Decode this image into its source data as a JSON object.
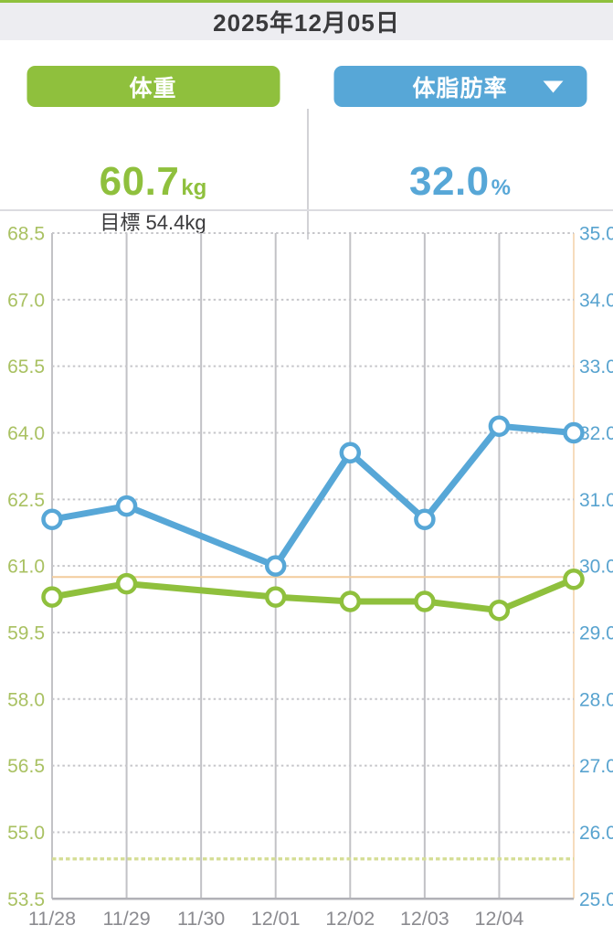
{
  "header": {
    "date": "2025年12月05日"
  },
  "metrics": {
    "weight": {
      "label": "体重",
      "value": "60.7",
      "unit": "kg",
      "target": "目標 54.4kg",
      "color": "#8fc03d"
    },
    "body_fat": {
      "label": "体脂肪率",
      "value": "32.0",
      "unit": "%",
      "color": "#57a7d7",
      "dropdown_icon": "chevron-down-triangle"
    }
  },
  "chart_data": {
    "type": "line",
    "x_dates": [
      "11/28",
      "11/29",
      "11/30",
      "12/01",
      "12/02",
      "12/03",
      "12/04",
      "12/05"
    ],
    "x_tick_labels": [
      "11/28",
      "11/29",
      "11/30",
      "12/01",
      "12/02",
      "12/03",
      "12/04"
    ],
    "left_axis": {
      "min": 53.5,
      "max": 68.5,
      "step": 1.5,
      "ticks": [
        "68.5",
        "67.0",
        "65.5",
        "64.0",
        "62.5",
        "61.0",
        "59.5",
        "58.0",
        "56.5",
        "55.0",
        "53.5"
      ],
      "color": "#a9c162"
    },
    "right_axis": {
      "min": 25.0,
      "max": 35.0,
      "step": 1.0,
      "ticks": [
        "35.0",
        "34.0",
        "33.0",
        "32.0",
        "31.0",
        "30.0",
        "29.0",
        "28.0",
        "27.0",
        "26.0",
        "25.0"
      ],
      "color": "#58a3cf"
    },
    "series": [
      {
        "key": "weight",
        "name": "体重",
        "axis": "left",
        "color": "#8fc03d",
        "values": [
          60.3,
          60.6,
          null,
          60.3,
          60.2,
          60.2,
          60.0,
          60.7
        ]
      },
      {
        "key": "body-fat",
        "name": "体脂肪率",
        "axis": "right",
        "color": "#57a7d7",
        "values": [
          30.7,
          30.9,
          null,
          30.0,
          31.7,
          30.7,
          32.1,
          32.0
        ]
      }
    ],
    "reference_lines": [
      {
        "name": "weight-guide",
        "axis": "left",
        "value": 60.75,
        "style": "solid",
        "color": "#f2cc9c"
      },
      {
        "name": "target-weight",
        "axis": "left",
        "value": 54.4,
        "style": "dashed",
        "color": "#d6de97"
      }
    ],
    "selected_date_marker": {
      "date": "12/05",
      "color": "#f6dcbd"
    },
    "grid": {
      "vline_color": "#c2c2c6",
      "hline_color": "#c6c6ca",
      "axis_color": "#b2b2b7",
      "xlabel_color": "#8b8b90"
    },
    "legend": "none",
    "title": ""
  }
}
